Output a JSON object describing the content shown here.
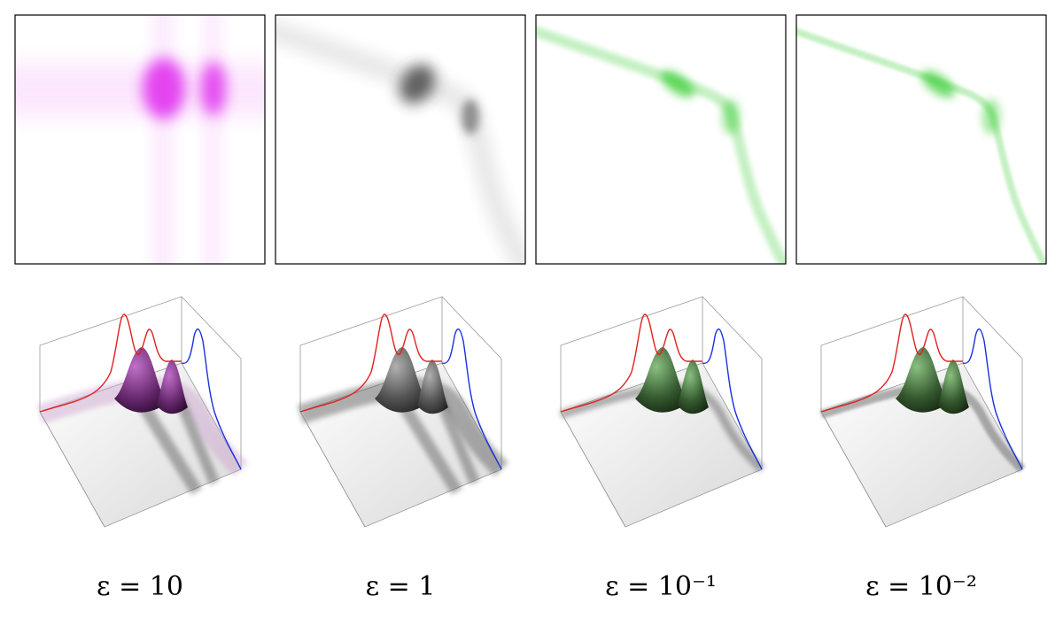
{
  "panels": [
    {
      "label": "ε = 10"
    },
    {
      "label": "ε = 1"
    },
    {
      "label": "ε = 10⁻¹"
    },
    {
      "label": "ε = 10⁻²"
    }
  ]
}
